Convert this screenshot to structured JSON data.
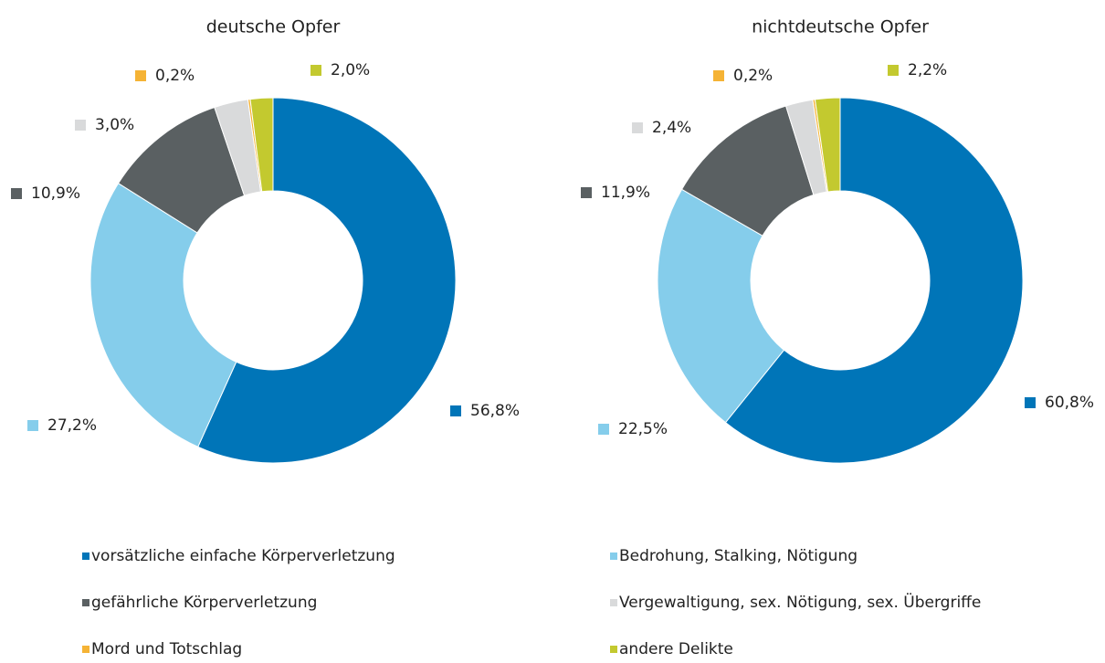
{
  "legend": {
    "categories": [
      "vorsätzliche einfache Körperverletzung",
      "Bedrohung, Stalking, Nötigung",
      "gefährliche Körperverletzung",
      "Vergewaltigung, sex. Nötigung, sex. Übergriffe",
      "Mord und Totschlag",
      "andere Delikte"
    ],
    "colors": [
      "#0075b8",
      "#85cdeb",
      "#5a6062",
      "#d9dadb",
      "#f5b335",
      "#c3c92f"
    ]
  },
  "chart_data": [
    {
      "type": "pie",
      "title": "deutsche Opfer",
      "values": [
        56.8,
        27.2,
        10.9,
        3.0,
        0.2,
        2.0
      ],
      "value_labels": [
        "56,8%",
        "27,2%",
        "10,9%",
        "3,0%",
        "0,2%",
        "2,0%"
      ]
    },
    {
      "type": "pie",
      "title": "nichtdeutsche Opfer",
      "values": [
        60.8,
        22.5,
        11.9,
        2.4,
        0.2,
        2.2
      ],
      "value_labels": [
        "60,8%",
        "22,5%",
        "11,9%",
        "2,4%",
        "0,2%",
        "2,2%"
      ]
    }
  ]
}
